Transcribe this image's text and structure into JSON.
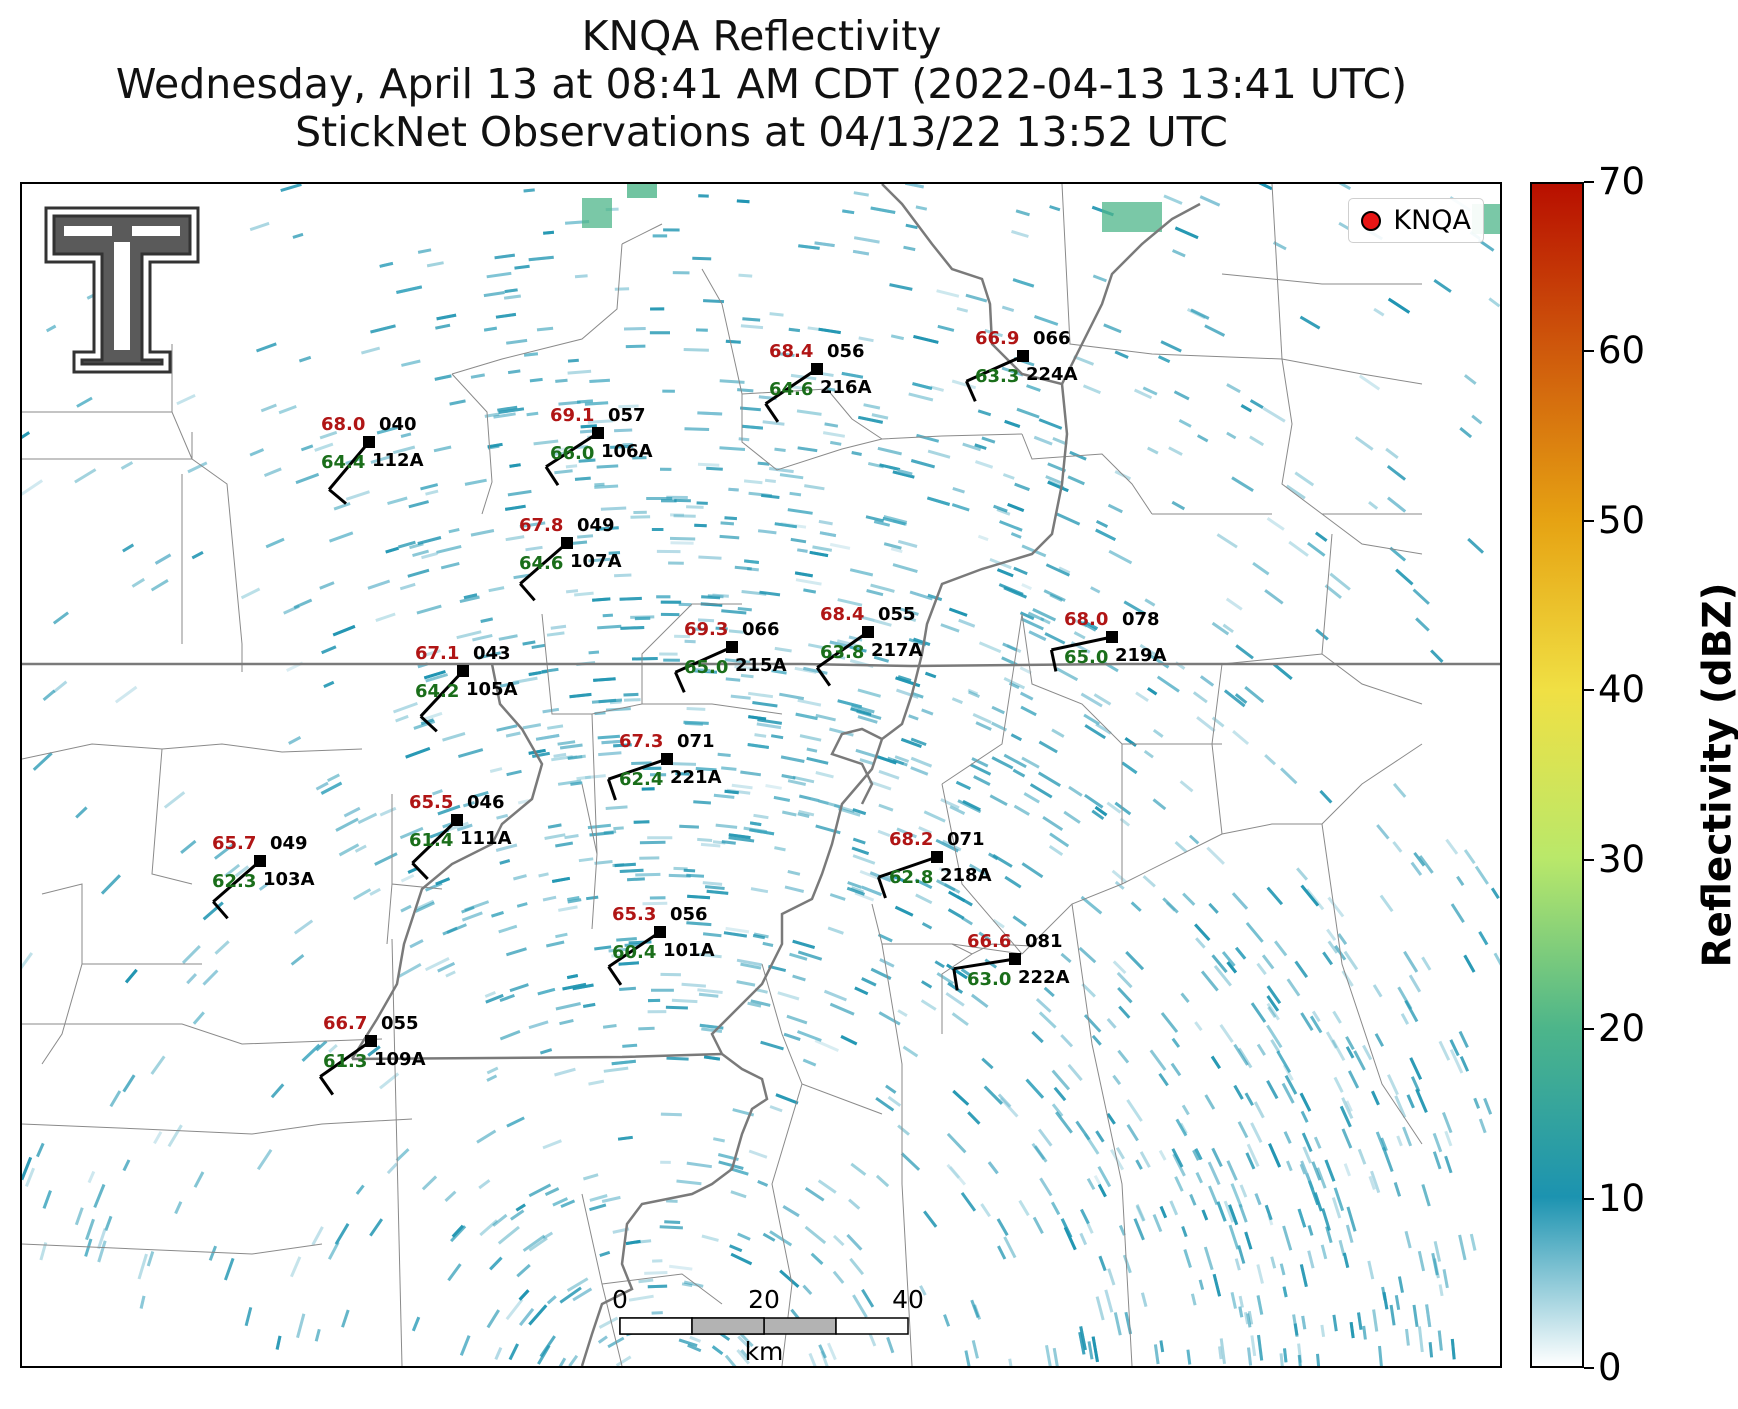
{
  "title": {
    "line1": "KNQA Reflectivity",
    "line2": "Wednesday, April 13 at 08:41 AM CDT (2022-04-13 13:41 UTC)",
    "line3": "StickNet Observations at 04/13/22 13:52 UTC"
  },
  "logo": {
    "name": "texas-tech-double-t-logo"
  },
  "legend": {
    "label": "KNQA",
    "marker_color": "#e81515"
  },
  "colorbar": {
    "title": "Reflectivity (dBZ)",
    "min": 0,
    "max": 70,
    "ticks": [
      "0",
      "10",
      "20",
      "30",
      "40",
      "50",
      "60",
      "70"
    ],
    "colors": [
      "#ffffff",
      "#1c93b0",
      "#4db58a",
      "#b9e86a",
      "#f0e044",
      "#e6a313",
      "#cf5a0c",
      "#b80f00"
    ]
  },
  "scale_bar": {
    "ticks": [
      "0",
      "20",
      "40"
    ],
    "unit": "km"
  },
  "colors": {
    "temperature": "#b01515",
    "dewpoint": "#1a6e1a",
    "station": "#000000",
    "radar": "#1c93b0"
  },
  "stations": [
    {
      "id": "112A",
      "temp": "68.0",
      "dew": "64.4",
      "dir": "040"
    },
    {
      "id": "106A",
      "temp": "69.1",
      "dew": "66.0",
      "dir": "057"
    },
    {
      "id": "216A",
      "temp": "68.4",
      "dew": "64.6",
      "dir": "056"
    },
    {
      "id": "224A",
      "temp": "66.9",
      "dew": "63.3",
      "dir": "066"
    },
    {
      "id": "107A",
      "temp": "67.8",
      "dew": "64.6",
      "dir": "049"
    },
    {
      "id": "215A",
      "temp": "69.3",
      "dew": "65.0",
      "dir": "066"
    },
    {
      "id": "217A",
      "temp": "68.4",
      "dew": "63.8",
      "dir": "055"
    },
    {
      "id": "219A",
      "temp": "68.0",
      "dew": "65.0",
      "dir": "078"
    },
    {
      "id": "105A",
      "temp": "67.1",
      "dew": "64.2",
      "dir": "043"
    },
    {
      "id": "221A",
      "temp": "67.3",
      "dew": "62.4",
      "dir": "071"
    },
    {
      "id": "111A",
      "temp": "65.5",
      "dew": "61.4",
      "dir": "046"
    },
    {
      "id": "103A",
      "temp": "65.7",
      "dew": "62.3",
      "dir": "049"
    },
    {
      "id": "218A",
      "temp": "68.2",
      "dew": "62.8",
      "dir": "071"
    },
    {
      "id": "101A",
      "temp": "65.3",
      "dew": "60.4",
      "dir": "056"
    },
    {
      "id": "222A",
      "temp": "66.6",
      "dew": "63.0",
      "dir": "081"
    },
    {
      "id": "109A",
      "temp": "66.7",
      "dew": "61.3",
      "dir": "055"
    }
  ]
}
